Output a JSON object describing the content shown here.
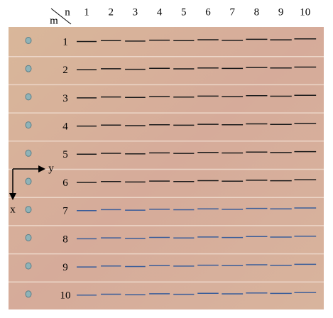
{
  "header": {
    "m": "m",
    "n": "n"
  },
  "columns": [
    1,
    2,
    3,
    4,
    5,
    6,
    7,
    8,
    9,
    10
  ],
  "rows": [
    1,
    2,
    3,
    4,
    5,
    6,
    7,
    8,
    9,
    10
  ],
  "axes": {
    "x": "x",
    "y": "y"
  }
}
